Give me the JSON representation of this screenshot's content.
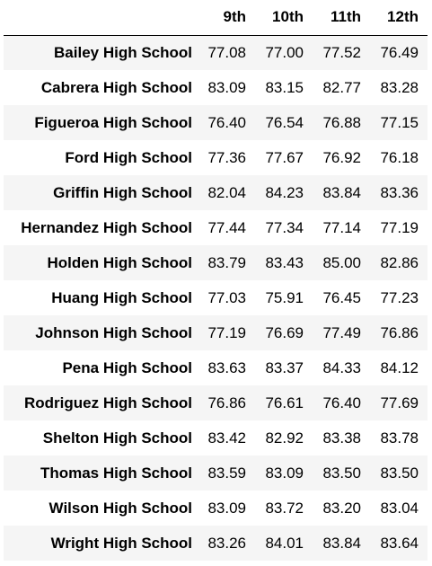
{
  "table": {
    "index_header": "",
    "columns": [
      "9th",
      "10th",
      "11th",
      "12th"
    ],
    "rows": [
      {
        "school": "Bailey High School",
        "values": [
          "77.08",
          "77.00",
          "77.52",
          "76.49"
        ]
      },
      {
        "school": "Cabrera High School",
        "values": [
          "83.09",
          "83.15",
          "82.77",
          "83.28"
        ]
      },
      {
        "school": "Figueroa High School",
        "values": [
          "76.40",
          "76.54",
          "76.88",
          "77.15"
        ]
      },
      {
        "school": "Ford High School",
        "values": [
          "77.36",
          "77.67",
          "76.92",
          "76.18"
        ]
      },
      {
        "school": "Griffin High School",
        "values": [
          "82.04",
          "84.23",
          "83.84",
          "83.36"
        ]
      },
      {
        "school": "Hernandez High School",
        "values": [
          "77.44",
          "77.34",
          "77.14",
          "77.19"
        ]
      },
      {
        "school": "Holden High School",
        "values": [
          "83.79",
          "83.43",
          "85.00",
          "82.86"
        ]
      },
      {
        "school": "Huang High School",
        "values": [
          "77.03",
          "75.91",
          "76.45",
          "77.23"
        ]
      },
      {
        "school": "Johnson High School",
        "values": [
          "77.19",
          "76.69",
          "77.49",
          "76.86"
        ]
      },
      {
        "school": "Pena High School",
        "values": [
          "83.63",
          "83.37",
          "84.33",
          "84.12"
        ]
      },
      {
        "school": "Rodriguez High School",
        "values": [
          "76.86",
          "76.61",
          "76.40",
          "77.69"
        ]
      },
      {
        "school": "Shelton High School",
        "values": [
          "83.42",
          "82.92",
          "83.38",
          "83.78"
        ]
      },
      {
        "school": "Thomas High School",
        "values": [
          "83.59",
          "83.09",
          "83.50",
          "83.50"
        ]
      },
      {
        "school": "Wilson High School",
        "values": [
          "83.09",
          "83.72",
          "83.20",
          "83.04"
        ]
      },
      {
        "school": "Wright High School",
        "values": [
          "83.26",
          "84.01",
          "83.84",
          "83.64"
        ]
      }
    ]
  },
  "colors": {
    "stripe_row": "#f5f5f5",
    "plain_row": "#ffffff",
    "header_rule": "#000000",
    "text": "#000000"
  }
}
